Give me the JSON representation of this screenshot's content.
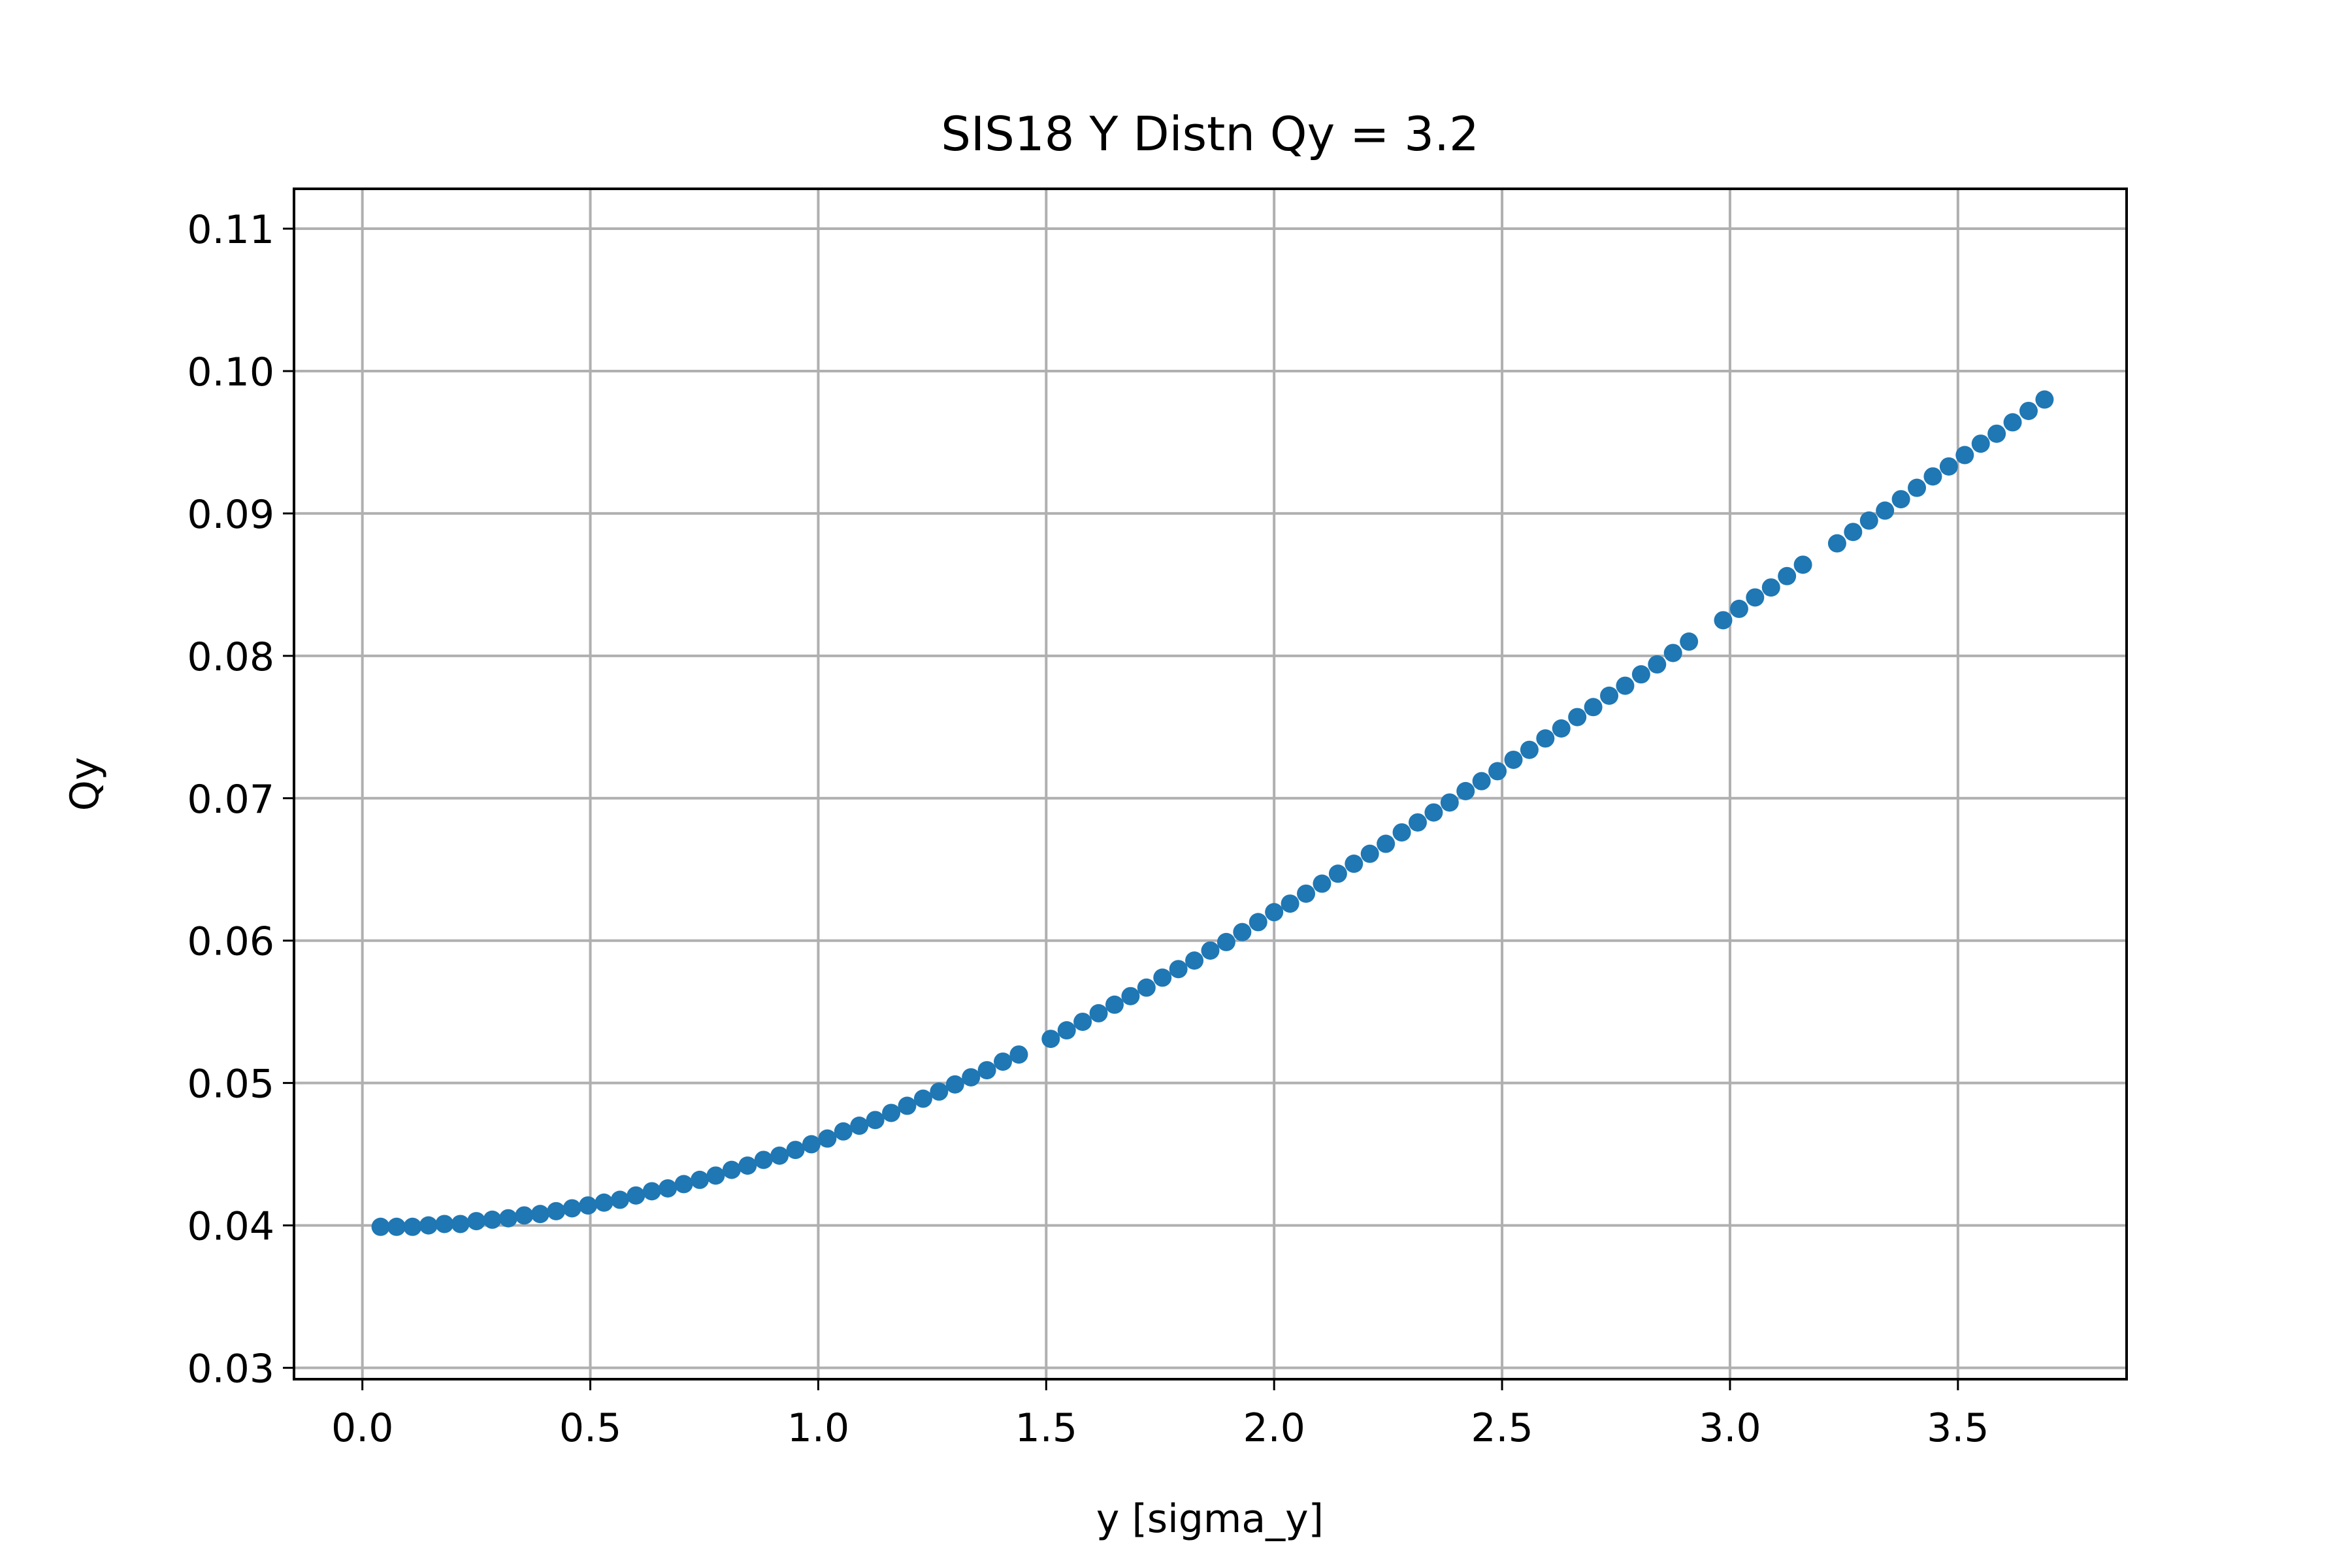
{
  "chart_data": {
    "type": "scatter",
    "title": "SIS18 Y Distn Qy = 3.2",
    "xlabel": "y [sigma_y]",
    "ylabel": "Qy",
    "xlim": [
      -0.15,
      3.87
    ],
    "ylim": [
      0.0292,
      0.1128
    ],
    "xticks": [
      0.0,
      0.5,
      1.0,
      1.5,
      2.0,
      2.5,
      3.0,
      3.5
    ],
    "xtick_labels": [
      "0.0",
      "0.5",
      "1.0",
      "1.5",
      "2.0",
      "2.5",
      "3.0",
      "3.5"
    ],
    "yticks": [
      0.03,
      0.04,
      0.05,
      0.06,
      0.07,
      0.08,
      0.09,
      0.1,
      0.11
    ],
    "ytick_labels": [
      "0.03",
      "0.04",
      "0.05",
      "0.06",
      "0.07",
      "0.08",
      "0.09",
      "0.10",
      "0.11"
    ],
    "grid": true,
    "series_color": "#1f77b4",
    "x": [
      0.04,
      0.075,
      0.11,
      0.145,
      0.18,
      0.215,
      0.25,
      0.285,
      0.32,
      0.355,
      0.39,
      0.425,
      0.46,
      0.495,
      0.53,
      0.565,
      0.6,
      0.635,
      0.67,
      0.705,
      0.74,
      0.775,
      0.81,
      0.845,
      0.88,
      0.915,
      0.95,
      0.985,
      1.02,
      1.055,
      1.09,
      1.125,
      1.16,
      1.195,
      1.23,
      1.265,
      1.3,
      1.335,
      1.37,
      1.405,
      1.44,
      1.51,
      1.545,
      1.58,
      1.615,
      1.65,
      1.685,
      1.72,
      1.755,
      1.79,
      1.825,
      1.86,
      1.895,
      1.93,
      1.965,
      2.0,
      2.035,
      2.07,
      2.105,
      2.14,
      2.175,
      2.21,
      2.245,
      2.28,
      2.315,
      2.35,
      2.385,
      2.42,
      2.455,
      2.49,
      2.525,
      2.56,
      2.595,
      2.63,
      2.665,
      2.7,
      2.735,
      2.77,
      2.805,
      2.84,
      2.875,
      2.91,
      2.985,
      3.02,
      3.055,
      3.09,
      3.125,
      3.16,
      3.235,
      3.27,
      3.305,
      3.34,
      3.375,
      3.41,
      3.445,
      3.48,
      3.515,
      3.55,
      3.585,
      3.62,
      3.655,
      3.69
    ],
    "y": [
      0.0399,
      0.0399,
      0.0399,
      0.04,
      0.0401,
      0.0401,
      0.0403,
      0.0404,
      0.0405,
      0.0407,
      0.0408,
      0.041,
      0.0412,
      0.0414,
      0.0416,
      0.0418,
      0.0421,
      0.0424,
      0.0426,
      0.0429,
      0.0432,
      0.0435,
      0.0439,
      0.0442,
      0.0446,
      0.0449,
      0.0453,
      0.0457,
      0.0461,
      0.0466,
      0.047,
      0.0474,
      0.0479,
      0.0484,
      0.0489,
      0.0494,
      0.0499,
      0.0504,
      0.0509,
      0.0515,
      0.052,
      0.0531,
      0.0537,
      0.0543,
      0.0549,
      0.0555,
      0.0561,
      0.0567,
      0.0574,
      0.058,
      0.0586,
      0.0593,
      0.0599,
      0.0606,
      0.0613,
      0.062,
      0.0626,
      0.0633,
      0.064,
      0.0647,
      0.0654,
      0.0661,
      0.0668,
      0.0676,
      0.0683,
      0.069,
      0.0697,
      0.0705,
      0.0712,
      0.0719,
      0.0727,
      0.0734,
      0.0742,
      0.0749,
      0.0757,
      0.0764,
      0.0772,
      0.0779,
      0.0787,
      0.0794,
      0.0802,
      0.081,
      0.0825,
      0.0833,
      0.0841,
      0.0848,
      0.0856,
      0.0864,
      0.0879,
      0.0887,
      0.0895,
      0.0902,
      0.091,
      0.0918,
      0.0926,
      0.0933,
      0.0941,
      0.0949,
      0.0956,
      0.0964,
      0.0972,
      0.098
    ]
  }
}
